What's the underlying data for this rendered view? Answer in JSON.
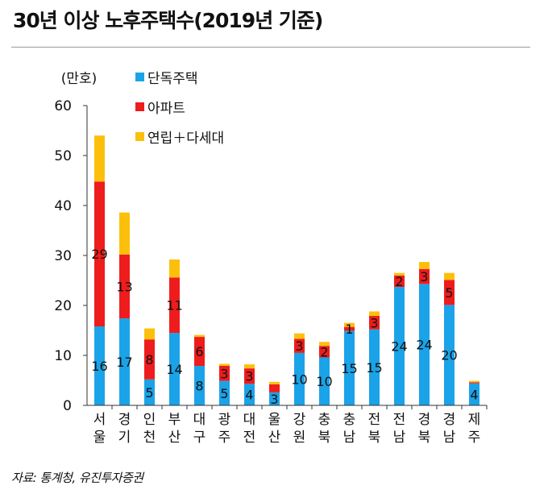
{
  "header": {
    "title": "30년 이상 노후주택수(2019년 기준)"
  },
  "footer": {
    "source": "자료: 통계청, 유진투자증권"
  },
  "chart_data": {
    "type": "bar",
    "stacked": true,
    "title": "30년 이상 노후주택수(2019년 기준)",
    "ylabel": "(만호)",
    "ylim": [
      0,
      60
    ],
    "yticks": [
      "0",
      "10",
      "20",
      "30",
      "40",
      "50",
      "60"
    ],
    "legend_position": "top-left",
    "grid": false,
    "categories": [
      [
        "서",
        "울"
      ],
      [
        "경",
        "기"
      ],
      [
        "인",
        "천"
      ],
      [
        "부",
        "산"
      ],
      [
        "대",
        "구"
      ],
      [
        "광",
        "주"
      ],
      [
        "대",
        "전"
      ],
      [
        "울",
        "산"
      ],
      [
        "강",
        "원"
      ],
      [
        "충",
        "북"
      ],
      [
        "충",
        "남"
      ],
      [
        "전",
        "북"
      ],
      [
        "전",
        "남"
      ],
      [
        "경",
        "북"
      ],
      [
        "경",
        "남"
      ],
      [
        "제",
        "주"
      ]
    ],
    "series": [
      {
        "name": "단독주택",
        "color": "#1aa3e8",
        "values": [
          15.8,
          17.4,
          5.2,
          14.5,
          7.9,
          4.9,
          4.3,
          2.6,
          10.5,
          9.6,
          14.9,
          15.2,
          23.7,
          24.3,
          20.1,
          4.4
        ]
      },
      {
        "name": "아파트",
        "color": "#ee1c1c",
        "values": [
          29.0,
          12.8,
          8.0,
          11.1,
          5.8,
          3.0,
          3.1,
          1.6,
          2.8,
          2.3,
          0.8,
          2.7,
          2.3,
          3.0,
          5.0,
          0.2
        ]
      },
      {
        "name": "연립＋다세대",
        "color": "#fcc00c",
        "values": [
          9.2,
          8.4,
          2.2,
          3.6,
          0.4,
          0.4,
          0.8,
          0.5,
          1.1,
          0.8,
          0.8,
          0.9,
          0.5,
          1.4,
          1.4,
          0.3
        ]
      }
    ],
    "data_labels": {
      "단독주택": [
        "16",
        "17",
        "5",
        "14",
        "8",
        "5",
        "4",
        "3",
        "10",
        "10",
        "15",
        "15",
        "24",
        "24",
        "20",
        "4"
      ],
      "아파트": [
        "29",
        "13",
        "8",
        "11",
        "6",
        "3",
        "3",
        "",
        "3",
        "2",
        "1",
        "3",
        "2",
        "3",
        "5",
        ""
      ]
    }
  }
}
